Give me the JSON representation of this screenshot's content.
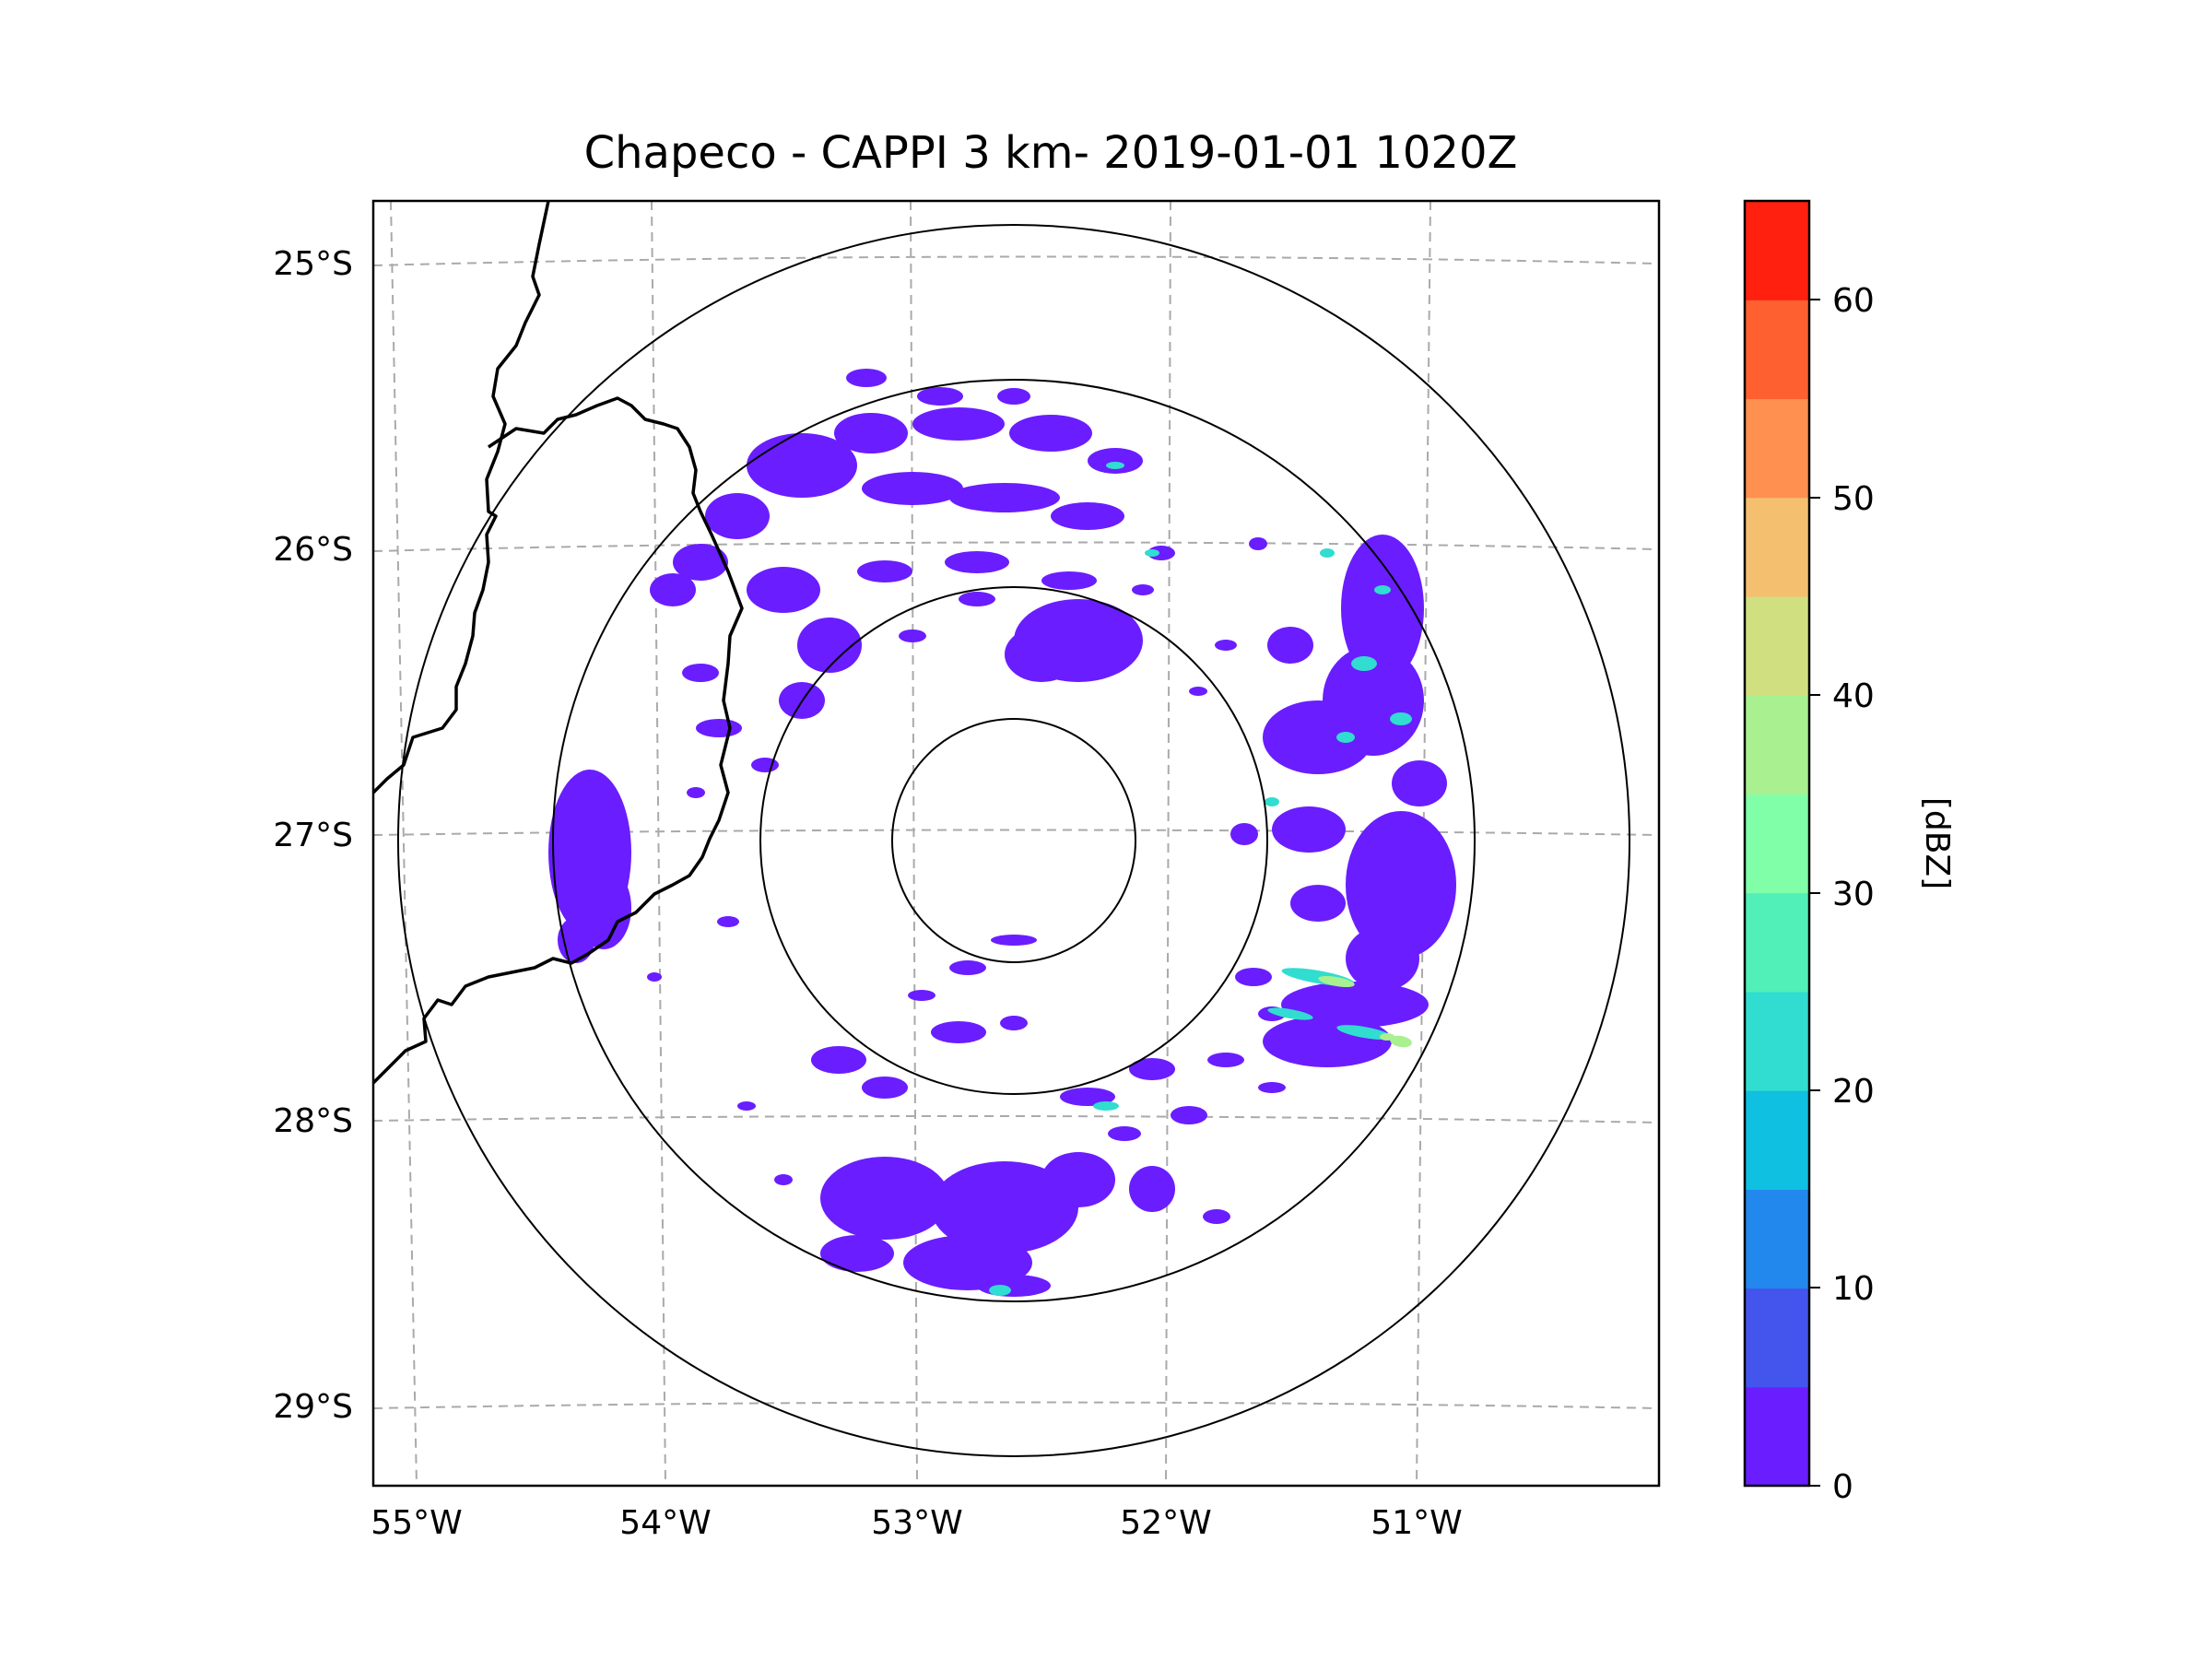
{
  "title": "Chapeco - CAPPI 3 km- 2019-01-01 1020Z",
  "map": {
    "lon_labels": [
      "55°W",
      "54°W",
      "53°W",
      "52°W",
      "51°W"
    ],
    "lat_labels": [
      "25°S",
      "26°S",
      "27°S",
      "28°S",
      "29°S"
    ],
    "range_rings": 4
  },
  "colorbar": {
    "label": "[dBZ]",
    "tick_labels": [
      "0",
      "10",
      "20",
      "30",
      "40",
      "50",
      "60"
    ],
    "colors": [
      "#6a1dff",
      "#4455ee",
      "#2288ee",
      "#10c0e0",
      "#30ddd0",
      "#50f0b8",
      "#80ffa8",
      "#a8f090",
      "#d0e080",
      "#f4c070",
      "#ff9050",
      "#ff6030",
      "#ff2010"
    ]
  },
  "colors": {
    "echo_weak": "#6a1dff",
    "echo_moderate": "#30ddd0",
    "echo_strong": "#a8f090",
    "grid": "#aaaaaa",
    "border": "#000000"
  }
}
